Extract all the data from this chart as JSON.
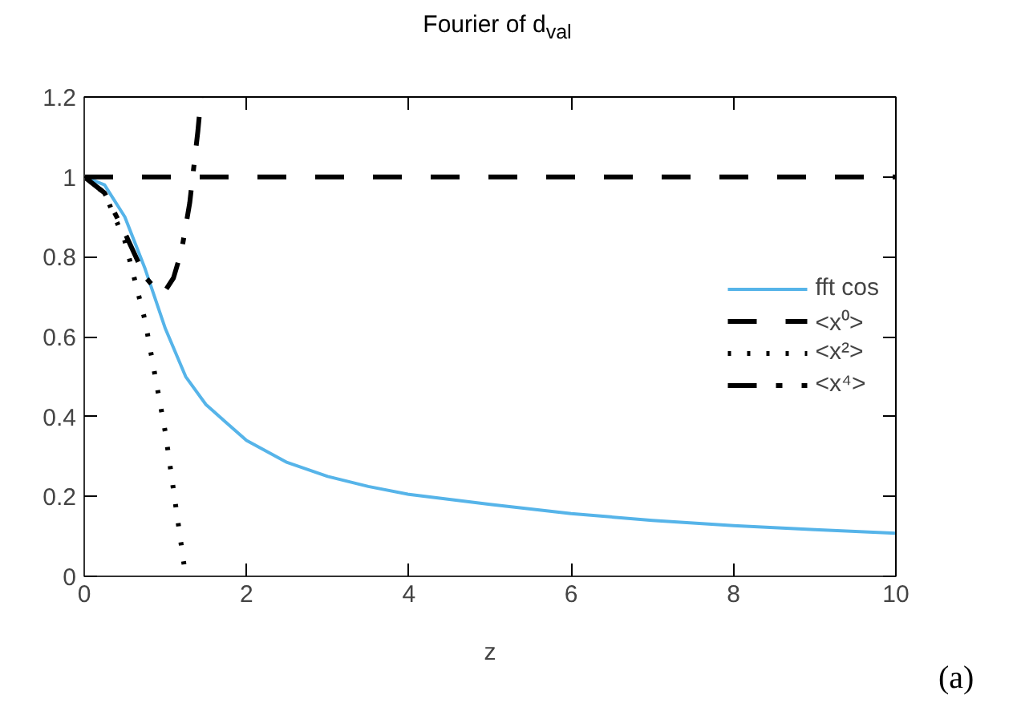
{
  "chart_data": {
    "type": "line",
    "title": "Fourier of d$_{val}$",
    "xlabel": "z",
    "xlim": [
      0,
      10
    ],
    "ylim": [
      0,
      1.2
    ],
    "xticks": [
      0,
      2,
      4,
      6,
      8,
      10
    ],
    "yticks": [
      0,
      0.2,
      0.4,
      0.6,
      0.8,
      1,
      1.2
    ],
    "grid": false,
    "legend": "right",
    "marker": "none",
    "series": [
      {
        "name": "fft cos",
        "color": "#56b4e9",
        "line_style": "solid",
        "x": [
          0,
          0.25,
          0.5,
          0.75,
          1,
          1.25,
          1.5,
          1.75,
          2,
          2.5,
          3,
          3.5,
          4,
          5,
          6,
          7,
          8,
          9,
          10
        ],
        "values": [
          1,
          0.98,
          0.9,
          0.77,
          0.62,
          0.5,
          0.43,
          0.385,
          0.34,
          0.285,
          0.25,
          0.225,
          0.205,
          0.18,
          0.157,
          0.14,
          0.127,
          0.117,
          0.108
        ]
      },
      {
        "name": "<x⁰>",
        "color": "#000000",
        "line_style": "dashed",
        "x": [
          0,
          10
        ],
        "values": [
          1,
          1
        ]
      },
      {
        "name": "<x²>",
        "color": "#000000",
        "line_style": "dotted",
        "x": [
          0,
          0.25,
          0.5,
          0.75,
          1,
          1.25
        ],
        "values": [
          1,
          0.96,
          0.84,
          0.64,
          0.36,
          0.0
        ]
      },
      {
        "name": "<x⁴>",
        "color": "#000000",
        "line_style": "dashdot",
        "x": [
          0,
          0.25,
          0.5,
          0.75,
          0.9,
          1.0,
          1.1,
          1.2,
          1.3,
          1.4,
          1.44
        ],
        "values": [
          1,
          0.96,
          0.86,
          0.75,
          0.715,
          0.716,
          0.747,
          0.816,
          0.935,
          1.114,
          1.2
        ]
      }
    ],
    "annotations": [
      "(a)"
    ]
  }
}
